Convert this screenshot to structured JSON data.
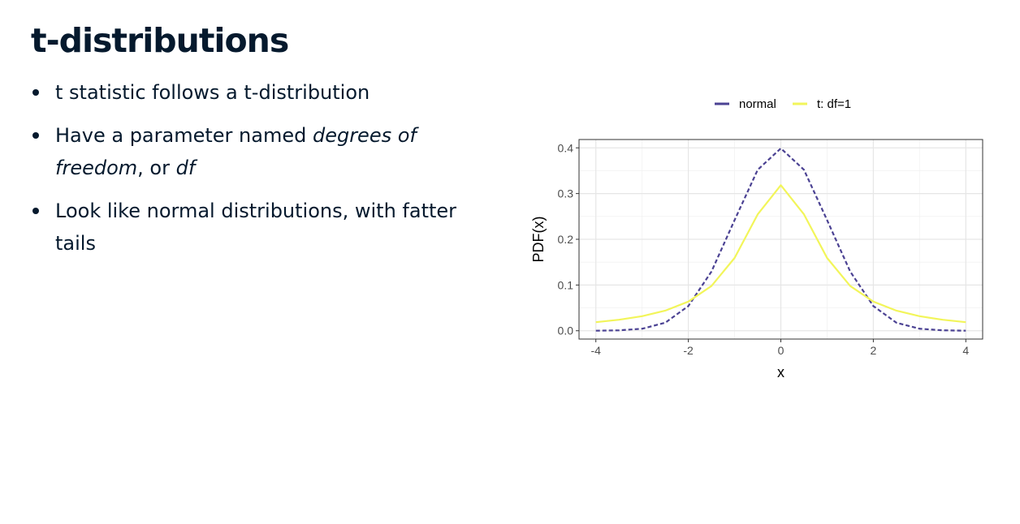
{
  "slide": {
    "title": "t-distributions",
    "bullets": [
      {
        "parts": [
          "t statistic follows a t-distribution"
        ]
      },
      {
        "parts": [
          "Have a parameter named ",
          "degrees of freedom",
          ", or ",
          "df"
        ]
      },
      {
        "parts": [
          "Look like normal distributions, with fatter tails"
        ]
      }
    ]
  },
  "chart_data": {
    "type": "line",
    "title": "",
    "xlabel": "x",
    "ylabel": "PDF(x)",
    "xlim": [
      -4,
      4
    ],
    "ylim": [
      0,
      0.4
    ],
    "x_ticks": [
      "-4",
      "-2",
      "0",
      "2",
      "4"
    ],
    "y_ticks": [
      "0.0",
      "0.1",
      "0.2",
      "0.3",
      "0.4"
    ],
    "grid": true,
    "legend": {
      "position": "top",
      "entries": [
        "normal",
        "t: df=1"
      ]
    },
    "x": [
      -4,
      -3.5,
      -3,
      -2.5,
      -2,
      -1.5,
      -1,
      -0.5,
      0,
      0.5,
      1,
      1.5,
      2,
      2.5,
      3,
      3.5,
      4
    ],
    "series": [
      {
        "name": "normal",
        "color": "#4b4293",
        "dash": true,
        "values": [
          0.0001,
          0.0009,
          0.0044,
          0.0175,
          0.054,
          0.1295,
          0.242,
          0.3521,
          0.3989,
          0.3521,
          0.242,
          0.1295,
          0.054,
          0.0175,
          0.0044,
          0.0009,
          0.0001
        ]
      },
      {
        "name": "t: df=1",
        "color": "#f2f55a",
        "dash": false,
        "values": [
          0.0187,
          0.024,
          0.0318,
          0.0439,
          0.0637,
          0.0979,
          0.1592,
          0.2546,
          0.3183,
          0.2546,
          0.1592,
          0.0979,
          0.0637,
          0.0439,
          0.0318,
          0.024,
          0.0187
        ]
      }
    ]
  }
}
